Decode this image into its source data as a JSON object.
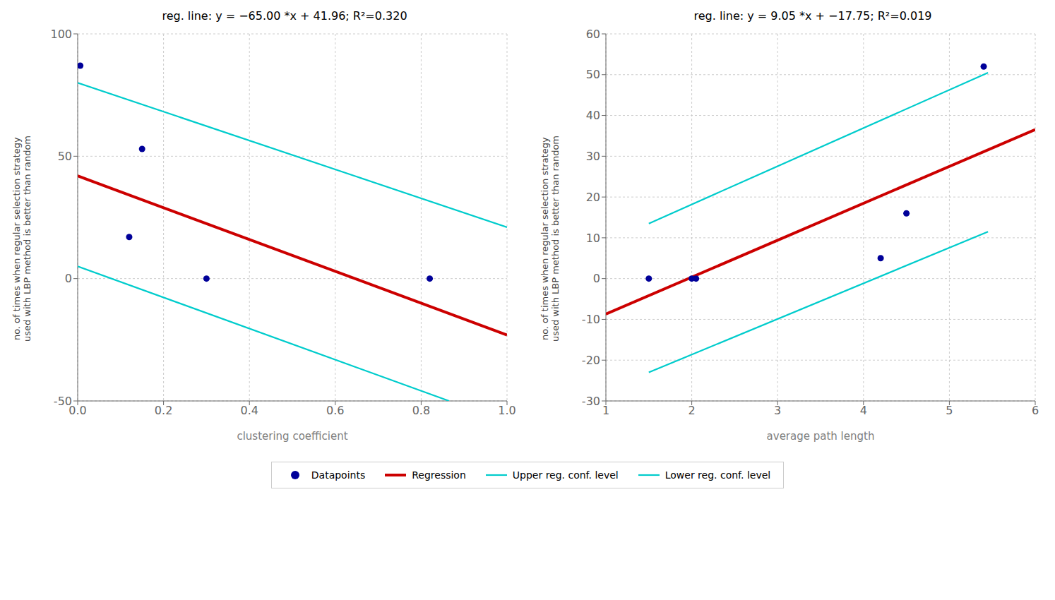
{
  "chart_data": [
    {
      "type": "scatter",
      "title": "reg. line: y = −65.00 *x + 41.96; R²=0.320",
      "x_label": "clustering coefficient",
      "y_label": "no. of times when regular selection strategy\nused with LBP method is better than random",
      "xlim": [
        0,
        1
      ],
      "ylim": [
        -50,
        100
      ],
      "xticks": [
        {
          "value": 0,
          "label": "0.0"
        },
        0.2,
        0.4,
        0.6,
        0.8,
        {
          "value": 1,
          "label": "1.0"
        }
      ],
      "yticks": [
        -50,
        0,
        50,
        100
      ],
      "grid": true,
      "legend": "bottom",
      "series": [
        {
          "name": "Datapoints",
          "type": "scatter",
          "color": "#000099",
          "x": [
            0.006,
            0.12,
            0.15,
            0.3,
            0.82
          ],
          "values": [
            87,
            17,
            53,
            0,
            0
          ]
        },
        {
          "name": "Regression",
          "type": "line",
          "color": "#CC0000",
          "x": [
            0,
            1
          ],
          "values": [
            41.96,
            -23.04
          ]
        },
        {
          "name": "Upper reg. conf. level",
          "type": "line",
          "color": "#00CCCC",
          "x": [
            0.0,
            1.0
          ],
          "values": [
            80.0,
            21.0
          ]
        },
        {
          "name": "Lower reg. conf. level",
          "type": "line",
          "color": "#00CCCC",
          "x": [
            0.0,
            0.865
          ],
          "values": [
            5.0,
            -50.0
          ]
        }
      ]
    },
    {
      "type": "scatter",
      "title": "reg. line: y = 9.05 *x + −17.75; R²=0.019",
      "x_label": "average path length",
      "y_label": "no. of times when regular selection strategy\nused with LBP method is better than random",
      "xlim": [
        1,
        6
      ],
      "ylim": [
        -30,
        60
      ],
      "xticks": [
        1,
        2,
        3,
        4,
        5,
        6
      ],
      "yticks": [
        -30,
        -20,
        -10,
        0,
        10,
        20,
        30,
        40,
        50,
        60
      ],
      "grid": true,
      "legend": "bottom",
      "series": [
        {
          "name": "Datapoints",
          "type": "scatter",
          "color": "#000099",
          "x": [
            1.5,
            2.0,
            2.05,
            4.2,
            4.5,
            5.4
          ],
          "values": [
            0,
            0,
            0,
            5,
            16,
            52
          ]
        },
        {
          "name": "Regression",
          "type": "line",
          "color": "#CC0000",
          "x": [
            1,
            6
          ],
          "values": [
            -8.7,
            36.55
          ]
        },
        {
          "name": "Upper reg. conf. level",
          "type": "line",
          "color": "#00CCCC",
          "x": [
            1.5,
            5.45
          ],
          "values": [
            13.5,
            50.5
          ]
        },
        {
          "name": "Lower reg. conf. level",
          "type": "line",
          "color": "#00CCCC",
          "x": [
            1.5,
            5.45
          ],
          "values": [
            -23.0,
            11.5
          ]
        }
      ]
    }
  ]
}
